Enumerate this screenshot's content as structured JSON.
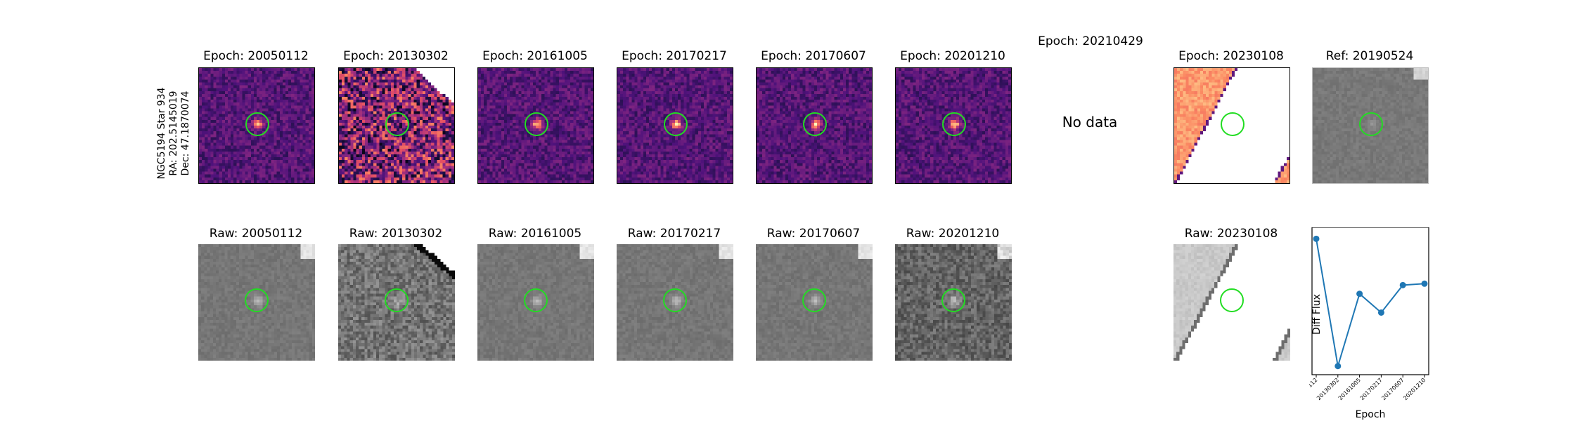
{
  "side_label": {
    "line1": "NGC5194 Star 934",
    "line2": "RA: 202.5145019",
    "line3": "Dec: 47.1870074"
  },
  "top_row": [
    {
      "title": "Epoch: 20050112",
      "kind": "diff",
      "seed": 11
    },
    {
      "title": "Epoch: 20130302",
      "kind": "diff_noisy",
      "seed": 22
    },
    {
      "title": "Epoch: 20161005",
      "kind": "diff",
      "seed": 33
    },
    {
      "title": "Epoch: 20170217",
      "kind": "diff",
      "seed": 44
    },
    {
      "title": "Epoch: 20170607",
      "kind": "diff",
      "seed": 55
    },
    {
      "title": "Epoch: 20201210",
      "kind": "diff",
      "seed": 66
    },
    {
      "title": "Epoch: 20210429",
      "kind": "nodata",
      "seed": 0
    },
    {
      "title": "Epoch: 20230108",
      "kind": "diff_edge",
      "seed": 77
    },
    {
      "title": "Ref: 20190524",
      "kind": "ref",
      "seed": 88
    }
  ],
  "bottom_row": [
    {
      "title": "Raw: 20050112",
      "kind": "raw",
      "seed": 101
    },
    {
      "title": "Raw: 20130302",
      "kind": "raw_noisy",
      "seed": 102
    },
    {
      "title": "Raw: 20161005",
      "kind": "raw",
      "seed": 103
    },
    {
      "title": "Raw: 20170217",
      "kind": "raw",
      "seed": 104
    },
    {
      "title": "Raw: 20170607",
      "kind": "raw",
      "seed": 105
    },
    {
      "title": "Raw: 20201210",
      "kind": "raw_noisy2",
      "seed": 106
    },
    {
      "title": "Raw: 20230108",
      "kind": "raw_edge",
      "seed": 107
    }
  ],
  "no_data_text": "No data",
  "circle_color": "#22dd22",
  "chart_data": {
    "type": "line",
    "xlabel": "Epoch",
    "ylabel": "Diff Flux",
    "categories": [
      "20050112",
      "20130302",
      "20161005",
      "20170217",
      "20170607",
      "20201210"
    ],
    "values": [
      0.88,
      0.0,
      0.5,
      0.37,
      0.56,
      0.57
    ],
    "ylim": [
      -0.04,
      0.94
    ],
    "color": "#1f77b4"
  }
}
